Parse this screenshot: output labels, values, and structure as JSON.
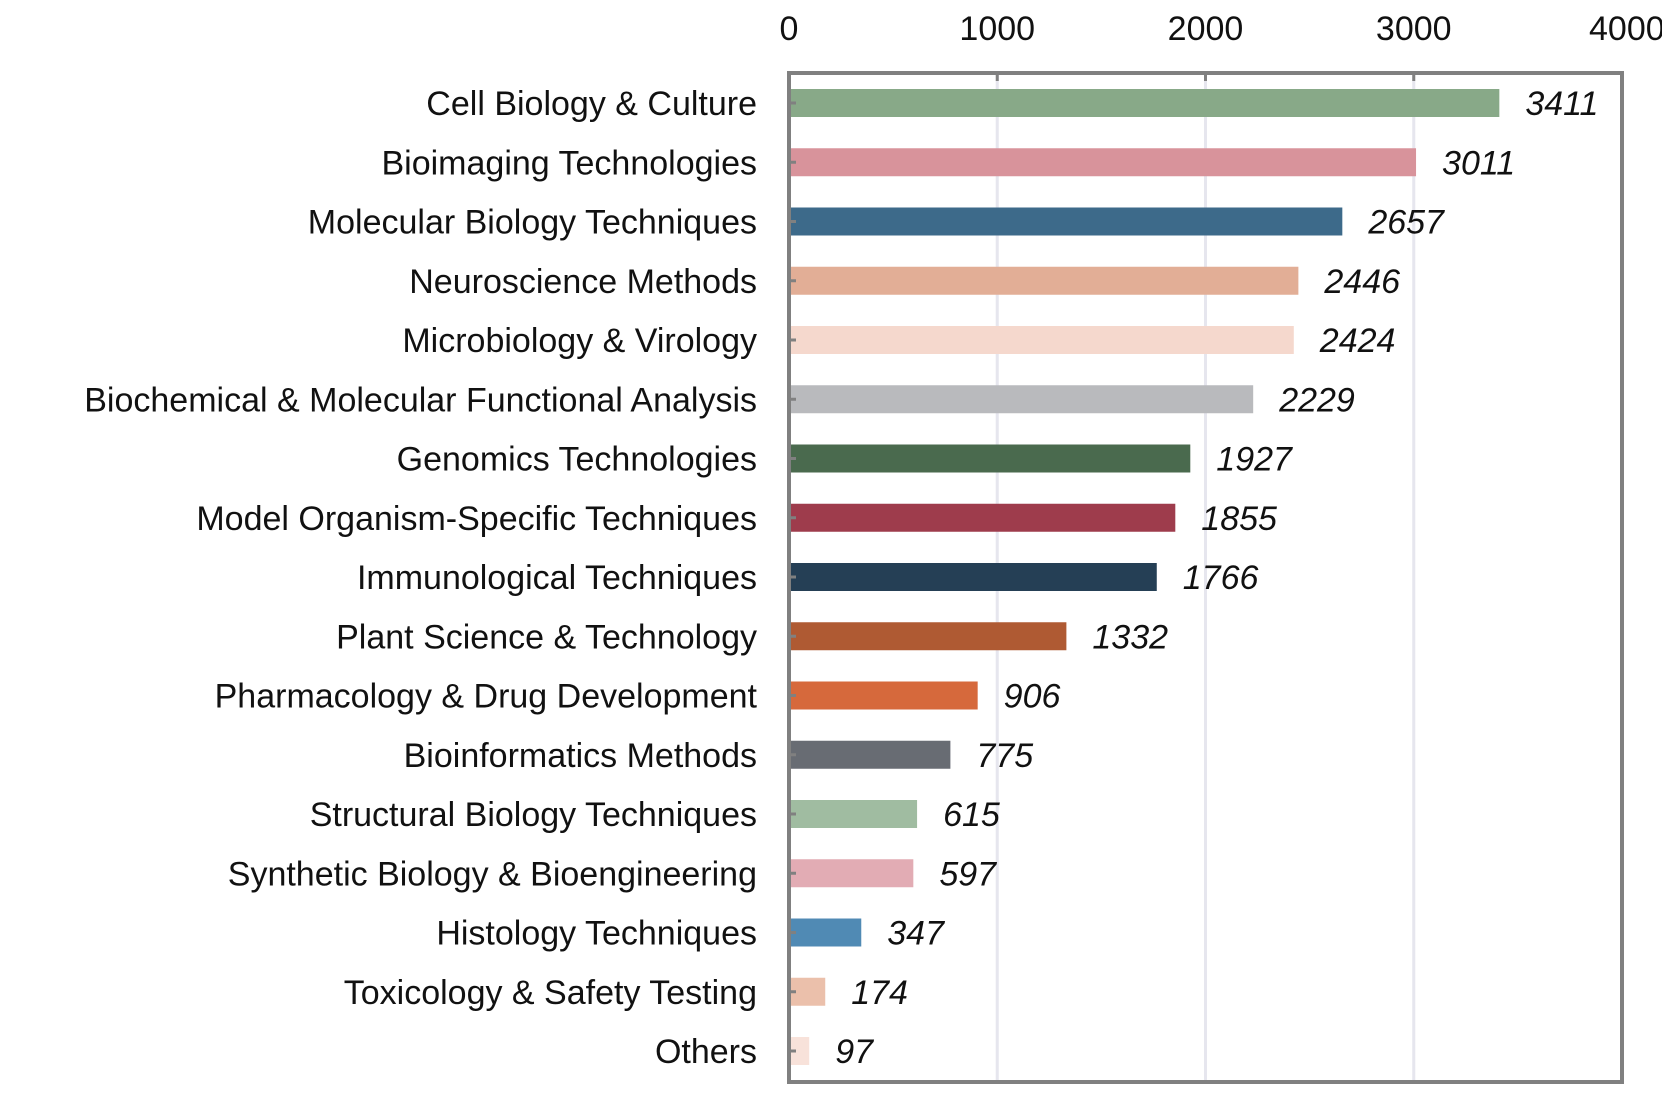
{
  "chart_data": {
    "type": "bar",
    "orientation": "horizontal",
    "title": "",
    "xlabel": "",
    "ylabel": "",
    "xlim": [
      0,
      4000
    ],
    "xticks": [
      0,
      1000,
      2000,
      3000,
      4000
    ],
    "xtick_position": "top",
    "grid": "vertical",
    "categories": [
      "Cell Biology & Culture",
      "Bioimaging Technologies",
      "Molecular Biology Techniques",
      "Neuroscience Methods",
      "Microbiology & Virology",
      "Biochemical & Molecular Functional Analysis",
      "Genomics Technologies",
      "Model Organism-Specific Techniques",
      "Immunological Techniques",
      "Plant Science & Technology",
      "Pharmacology & Drug Development",
      "Bioinformatics Methods",
      "Structural Biology Techniques",
      "Synthetic Biology & Bioengineering",
      "Histology Techniques",
      "Toxicology & Safety Testing",
      "Others"
    ],
    "values": [
      3411,
      3011,
      2657,
      2446,
      2424,
      2229,
      1927,
      1855,
      1766,
      1332,
      906,
      775,
      615,
      597,
      347,
      174,
      97
    ],
    "colors": [
      "#88a988",
      "#d8939b",
      "#3d6a8a",
      "#e2ae96",
      "#f5d8cd",
      "#b9babd",
      "#4a6a4e",
      "#9e3c4c",
      "#253f55",
      "#af5a33",
      "#d6693c",
      "#686c73",
      "#a0bca1",
      "#e2acb4",
      "#508ab4",
      "#ebc0ab",
      "#f8e2da"
    ]
  }
}
